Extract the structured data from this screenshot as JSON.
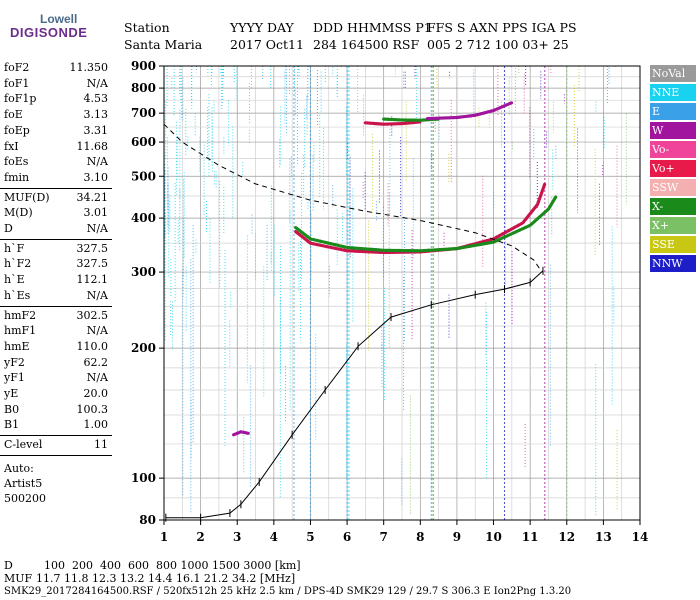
{
  "logo": {
    "top": "Lowell",
    "main": "DIGISONDE"
  },
  "header": {
    "labels": [
      "Station",
      "YYYY DAY",
      "DDD HHMMSS P1",
      "FFS S AXN PPS IGA PS"
    ],
    "values": [
      "Santa Maria",
      "2017 Oct11",
      "284 164500 RSF",
      "005 2 712 100 03+ 25"
    ]
  },
  "params": {
    "group1": [
      {
        "k": "foF2",
        "v": "11.350"
      },
      {
        "k": "foF1",
        "v": "N/A"
      },
      {
        "k": "foF1p",
        "v": "4.53"
      },
      {
        "k": "foE",
        "v": "3.13"
      },
      {
        "k": "foEp",
        "v": "3.31"
      },
      {
        "k": "fxI",
        "v": "11.68"
      },
      {
        "k": "foEs",
        "v": "N/A"
      },
      {
        "k": "fmin",
        "v": "3.10"
      }
    ],
    "group2": [
      {
        "k": "MUF(D)",
        "v": "34.21"
      },
      {
        "k": "M(D)",
        "v": "3.01"
      },
      {
        "k": "D",
        "v": "N/A"
      }
    ],
    "group3": [
      {
        "k": "h`F",
        "v": "327.5"
      },
      {
        "k": "h`F2",
        "v": "327.5"
      },
      {
        "k": "h`E",
        "v": "112.1"
      },
      {
        "k": "h`Es",
        "v": "N/A"
      }
    ],
    "group4": [
      {
        "k": "hmF2",
        "v": "302.5"
      },
      {
        "k": "hmF1",
        "v": "N/A"
      },
      {
        "k": "hmE",
        "v": "110.0"
      },
      {
        "k": "yF2",
        "v": "62.2"
      },
      {
        "k": "yF1",
        "v": "N/A"
      },
      {
        "k": "yE",
        "v": "20.0"
      },
      {
        "k": "B0",
        "v": "100.3"
      },
      {
        "k": "B1",
        "v": "1.00"
      }
    ],
    "clevel": {
      "k": "C-level",
      "v": "11"
    },
    "auto": [
      "Auto:",
      "Artist5",
      "500200"
    ]
  },
  "legend": [
    {
      "label": "NoVal",
      "color": "#9a9a9a"
    },
    {
      "label": "NNE",
      "color": "#19d2f0"
    },
    {
      "label": "E",
      "color": "#3aa0e8"
    },
    {
      "label": "W",
      "color": "#a0149e"
    },
    {
      "label": "Vo-",
      "color": "#f0449a"
    },
    {
      "label": "Vo+",
      "color": "#e81a4a"
    },
    {
      "label": "SSW",
      "color": "#f4b0b0"
    },
    {
      "label": "X-",
      "color": "#1a8a1a"
    },
    {
      "label": "X+",
      "color": "#7cc066"
    },
    {
      "label": "SSE",
      "color": "#c8c814"
    },
    {
      "label": "NNW",
      "color": "#1e1ec8"
    }
  ],
  "chart_data": {
    "type": "scatter",
    "title": "",
    "xlabel": "",
    "ylabel": "",
    "xlim": [
      1,
      14
    ],
    "ylim": [
      80,
      900
    ],
    "xticks": [
      "1",
      "2",
      "3",
      "4",
      "5",
      "6",
      "7",
      "8",
      "9",
      "10",
      "11",
      "12",
      "13",
      "14"
    ],
    "yticks": [
      "80",
      "100",
      "200",
      "300",
      "400",
      "500",
      "600",
      "700",
      "800",
      "900"
    ],
    "yscale": "log",
    "grid": true,
    "series": [
      {
        "type": "traces",
        "color": "#c8144a",
        "values": [
          [
            4.6,
            372
          ],
          [
            5,
            350
          ],
          [
            6,
            336
          ],
          [
            7,
            333
          ],
          [
            8,
            334
          ],
          [
            9,
            340
          ],
          [
            10,
            358
          ],
          [
            10.8,
            390
          ],
          [
            11.2,
            430
          ],
          [
            11.4,
            480
          ]
        ]
      },
      {
        "type": "traces",
        "color": "#1a8a1a",
        "values": [
          [
            4.6,
            380
          ],
          [
            5,
            358
          ],
          [
            6,
            342
          ],
          [
            7,
            337
          ],
          [
            8,
            336
          ],
          [
            9,
            340
          ],
          [
            10,
            352
          ],
          [
            11,
            385
          ],
          [
            11.5,
            420
          ],
          [
            11.7,
            448
          ]
        ]
      },
      {
        "type": "traces",
        "color": "#c8144a",
        "values": [
          [
            6.5,
            665
          ],
          [
            7,
            660
          ],
          [
            7.5,
            662
          ],
          [
            8,
            668
          ]
        ]
      },
      {
        "type": "traces",
        "color": "#1a8a1a",
        "values": [
          [
            7,
            678
          ],
          [
            7.5,
            675
          ],
          [
            8,
            674
          ],
          [
            8.5,
            678
          ]
        ]
      },
      {
        "type": "traces",
        "color": "#a0149e",
        "values": [
          [
            8.2,
            680
          ],
          [
            9,
            684
          ],
          [
            9.5,
            692
          ],
          [
            10,
            710
          ],
          [
            10.5,
            740
          ]
        ]
      },
      {
        "type": "traces",
        "color": "#a0149e",
        "values": [
          [
            2.9,
            126
          ],
          [
            3.1,
            128
          ],
          [
            3.3,
            127
          ]
        ]
      },
      {
        "type": "profile",
        "color": "#000000",
        "values": [
          [
            1.05,
            81
          ],
          [
            2,
            81
          ],
          [
            2.8,
            83
          ],
          [
            3.1,
            87
          ],
          [
            3.6,
            98
          ],
          [
            4.5,
            126
          ],
          [
            5.4,
            160
          ],
          [
            6.3,
            202
          ],
          [
            7.2,
            236
          ],
          [
            8.3,
            252
          ],
          [
            9.5,
            266
          ],
          [
            10.3,
            274
          ],
          [
            11.0,
            284
          ],
          [
            11.35,
            302
          ]
        ]
      },
      {
        "type": "muf",
        "color": "#000000",
        "values": [
          [
            1,
            660
          ],
          [
            1.5,
            600
          ],
          [
            2.5,
            530
          ],
          [
            3.5,
            480
          ],
          [
            5,
            440
          ],
          [
            6.5,
            415
          ],
          [
            8,
            395
          ],
          [
            9.5,
            370
          ],
          [
            10.5,
            345
          ],
          [
            11.1,
            320
          ],
          [
            11.3,
            302
          ]
        ]
      }
    ]
  },
  "bottom": {
    "d_label": "D",
    "d_values": "100  200  400  600  800 1000 1500 3000 [km]",
    "muf_label": "MUF",
    "muf_values": "11.7 11.8 12.3 13.2 14.4 16.1 21.2 34.2 [MHz]",
    "footer": "SMK29_2017284164500.RSF / 520fx512h 25 kHz 2.5 km / DPS-4D SMK29 129 / 29.7 S 306.3 E Ion2Png 1.3.20"
  }
}
